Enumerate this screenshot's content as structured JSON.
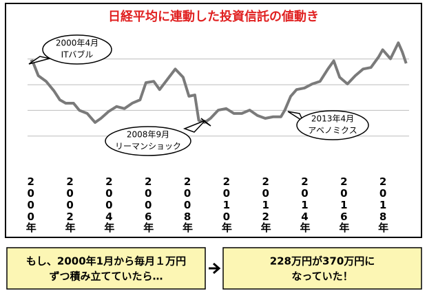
{
  "chart_data": {
    "type": "line",
    "title": "日経平均に連動した投資信託の値動き",
    "categories": [
      "2000年",
      "2002年",
      "2004年",
      "2006年",
      "2008年",
      "2010年",
      "2012年",
      "2014年",
      "2016年",
      "2018年"
    ],
    "category_x": [
      2000,
      2002,
      2004,
      2006,
      2008,
      2010,
      2012,
      2014,
      2016,
      2018
    ],
    "xlim": [
      1999.85,
      2019.35
    ],
    "ylim": [
      -1.4,
      4.4
    ],
    "yticks": [
      0,
      1,
      2,
      3
    ],
    "grid": true,
    "series": [
      {
        "color": "#7a7a7a",
        "x": [
          2000.0,
          2000.1,
          2000.4,
          2000.8,
          2001.2,
          2001.5,
          2001.8,
          2002.2,
          2002.5,
          2002.9,
          2003.3,
          2003.6,
          2004.0,
          2004.4,
          2004.8,
          2005.2,
          2005.6,
          2005.9,
          2006.3,
          2006.6,
          2007.0,
          2007.4,
          2007.8,
          2008.1,
          2008.4,
          2008.6,
          2008.9,
          2009.2,
          2009.6,
          2010.0,
          2010.4,
          2010.8,
          2011.2,
          2011.6,
          2012.0,
          2012.4,
          2012.8,
          2013.0,
          2013.3,
          2013.6,
          2014.0,
          2014.4,
          2014.8,
          2015.2,
          2015.5,
          2015.8,
          2016.2,
          2016.6,
          2017.0,
          2017.4,
          2017.8,
          2018.0,
          2018.4,
          2018.8,
          2019.0,
          2019.2
        ],
        "values": [
          2.9,
          2.93,
          2.35,
          2.13,
          1.76,
          1.41,
          1.28,
          1.28,
          1.0,
          0.88,
          0.53,
          0.69,
          0.96,
          1.15,
          1.07,
          1.28,
          1.41,
          2.08,
          2.13,
          1.81,
          2.21,
          2.61,
          2.29,
          1.55,
          1.6,
          0.61,
          0.53,
          0.69,
          1.01,
          1.07,
          0.88,
          0.88,
          1.01,
          0.8,
          0.69,
          0.75,
          0.75,
          1.01,
          1.55,
          1.81,
          1.87,
          2.03,
          2.13,
          2.61,
          2.93,
          2.29,
          2.03,
          2.35,
          2.61,
          2.67,
          3.09,
          3.36,
          3.01,
          3.63,
          3.28,
          2.83
        ]
      }
    ],
    "annotations": [
      {
        "lines": [
          "2000年4月",
          "ITバブル"
        ]
      },
      {
        "lines": [
          "2008年9月",
          "リーマンショック"
        ]
      },
      {
        "lines": [
          "2013年4月",
          "アベノミクス"
        ]
      }
    ]
  },
  "footer": {
    "condition": [
      "もし、2000年1月から毎月１万円",
      "ずつ積み立てていたら…"
    ],
    "result": [
      "228万円が370万円に",
      "なっていた！"
    ]
  }
}
